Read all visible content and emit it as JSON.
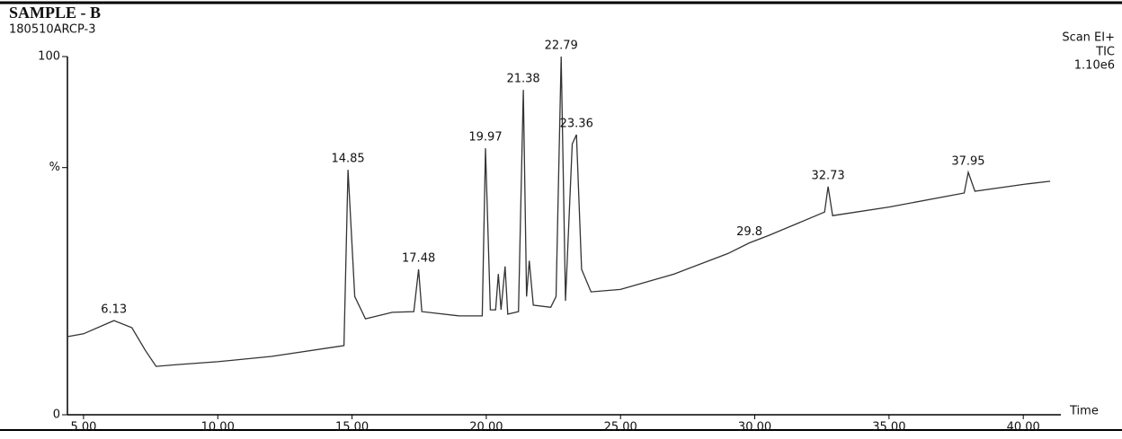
{
  "chart_data": {
    "type": "line",
    "title": "SAMPLE - B",
    "subtitle": "180510ARCP-3",
    "annotations": [
      "Scan EI+",
      "TIC",
      "1.10e6"
    ],
    "xlabel": "Time",
    "color": "#333333",
    "x": [
      4.4,
      5.0,
      6.13,
      6.8,
      7.3,
      7.7,
      8.5,
      10,
      12,
      14.7,
      14.85,
      15.1,
      15.5,
      16.5,
      17.3,
      17.48,
      17.6,
      19,
      19.85,
      19.97,
      20.15,
      20.35,
      20.45,
      20.55,
      20.7,
      20.8,
      21.2,
      21.38,
      21.5,
      21.6,
      21.75,
      22.4,
      22.6,
      22.79,
      22.95,
      23.2,
      23.36,
      23.55,
      23.9,
      25,
      27,
      29,
      29.8,
      30.5,
      32.6,
      32.73,
      32.9,
      35,
      37.8,
      37.95,
      38.2,
      40.1,
      41.0
    ],
    "values": [
      21.8,
      22.6,
      26.3,
      24.3,
      18,
      13.5,
      14,
      14.8,
      16.3,
      19.3,
      68.4,
      33,
      26.8,
      28.6,
      28.8,
      40.6,
      28.8,
      27.6,
      27.6,
      74.4,
      29.3,
      29.3,
      39.3,
      29.3,
      41.4,
      28.1,
      28.8,
      90.7,
      33,
      43,
      30.6,
      30,
      33,
      100,
      31.8,
      75.6,
      78.2,
      40.6,
      34.3,
      35,
      39.3,
      45,
      48,
      50,
      56.6,
      63.7,
      55.6,
      58,
      61.9,
      67.7,
      62.4,
      64.4,
      65.2
    ],
    "peaks": [
      {
        "x": 6.13,
        "y": 26.3
      },
      {
        "x": 14.85,
        "y": 68.4
      },
      {
        "x": 17.48,
        "y": 40.6
      },
      {
        "x": 19.97,
        "y": 74.4
      },
      {
        "x": 21.38,
        "y": 90.7
      },
      {
        "x": 22.79,
        "y": 100
      },
      {
        "x": 23.36,
        "y": 78.2
      },
      {
        "x": 29.8,
        "y": 48
      },
      {
        "x": 32.73,
        "y": 63.7
      },
      {
        "x": 37.95,
        "y": 67.7
      }
    ],
    "xlim": [
      4.4,
      41.4
    ],
    "xticks": [
      {
        "value": 5,
        "label": "5.00"
      },
      {
        "value": 10,
        "label": "10.00"
      },
      {
        "value": 15,
        "label": "15.00"
      },
      {
        "value": 20,
        "label": "20.00"
      },
      {
        "value": 25,
        "label": "25.00"
      },
      {
        "value": 30,
        "label": "30.00"
      },
      {
        "value": 35,
        "label": "35.00"
      },
      {
        "value": 40,
        "label": "40.00"
      }
    ],
    "ylim": [
      0,
      100
    ],
    "yticks": [
      0,
      {
        "value": 69,
        "label": "%"
      },
      100
    ]
  }
}
